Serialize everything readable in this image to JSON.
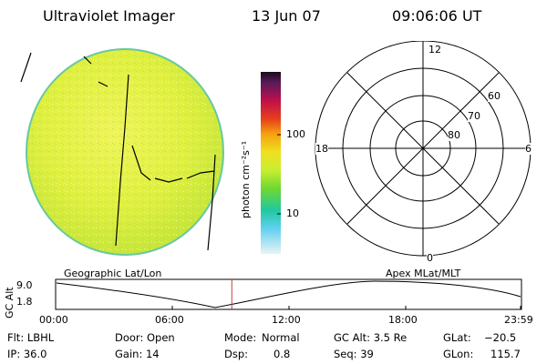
{
  "header": {
    "title": "Ultraviolet Imager",
    "date": "13 Jun 07",
    "time": "09:06:06 UT"
  },
  "colorbar": {
    "unit_label": "photon cm⁻²s⁻¹",
    "ticks": [
      "100",
      "10"
    ]
  },
  "polar_plot": {
    "lt_labels": [
      "12",
      "18",
      "6",
      "0"
    ],
    "lat_labels": [
      "60",
      "70",
      "80"
    ]
  },
  "orbit_panel": {
    "left_title": "Geographic Lat/Lon",
    "right_title": "Apex MLat/MLT",
    "y_axis_label": "GC Alt",
    "y_ticks": [
      "9.0",
      "1.8"
    ],
    "x_ticks": [
      "00:00",
      "06:00",
      "12:00",
      "18:00",
      "23:59"
    ],
    "current_time_fraction": 0.379
  },
  "status": {
    "flt": "Flt: LBHL",
    "ip": "IP: 36.0",
    "door": "Door: Open",
    "gain": "Gain: 14",
    "mode_label": "Mode:",
    "mode_value": "Normal",
    "dsp_label": "Dsp:",
    "dsp_value": "0.8",
    "gc_alt": "GC Alt: 3.5 Re",
    "seq": "Seq: 39",
    "glat_label": "GLat:",
    "glat_value": "−20.5",
    "glon_label": "GLon:",
    "glon_value": "115.7"
  },
  "colors": {
    "disk_fill": "#d8ef3a",
    "disk_edge": "#68c8a0",
    "marker": "#c04040"
  }
}
